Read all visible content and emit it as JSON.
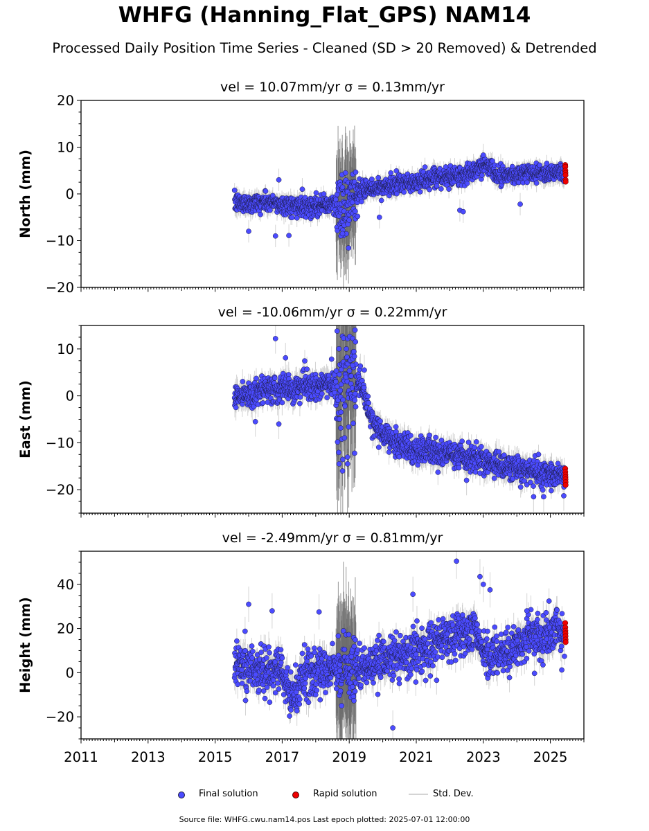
{
  "header": {
    "title": "WHFG (Hanning_Flat_GPS) NAM14",
    "subtitle": "Processed Daily Position Time Series - Cleaned (SD > 20 Removed) & Detrended"
  },
  "legend": {
    "final": "Final solution",
    "rapid": "Rapid solution",
    "stddev": "Std. Dev."
  },
  "footer": {
    "source": "Source file: WHFG.cwu.nam14.pos  Last epoch plotted: 2025-07-01 12:00:00"
  },
  "colors": {
    "final": "#4b4bff",
    "rapid": "#ee0000",
    "stddev": "#bdbdbd",
    "marker_edge": "#1a1a40"
  },
  "chart_data": [
    {
      "type": "scatter",
      "title": "vel = 10.07mm/yr   σ = 0.13mm/yr",
      "ylabel": "North (mm)",
      "xlim": [
        2011.0,
        2026.0
      ],
      "ylim": [
        -20,
        20
      ],
      "yticks": [
        -20,
        -10,
        0,
        10,
        20
      ],
      "xticks": [
        2011,
        2013,
        2015,
        2017,
        2019,
        2021,
        2023,
        2025
      ],
      "show_xticklabels": false,
      "data_start": 2015.58,
      "data_end": 2025.42,
      "rapid_start": 2025.42,
      "rapid_end": 2025.5,
      "trend": [
        [
          2015.58,
          -2.0
        ],
        [
          2016.5,
          -1.8
        ],
        [
          2017.3,
          -2.6
        ],
        [
          2018.5,
          -2.3
        ],
        [
          2018.9,
          -2.0
        ],
        [
          2019.3,
          0.5
        ],
        [
          2020.0,
          1.5
        ],
        [
          2021.0,
          2.5
        ],
        [
          2022.0,
          3.8
        ],
        [
          2022.7,
          4.5
        ],
        [
          2023.1,
          6.5
        ],
        [
          2023.5,
          4.0
        ],
        [
          2024.5,
          4.5
        ],
        [
          2025.42,
          4.8
        ]
      ],
      "scatter_sd": 1.0,
      "sd_base": 1.5,
      "noisy_window": [
        2018.6,
        2019.2
      ],
      "noisy_sd": 3.5,
      "outliers": [
        [
          2016.0,
          -8.0
        ],
        [
          2016.8,
          -9.0
        ],
        [
          2017.2,
          -8.9
        ],
        [
          2016.9,
          3.0
        ],
        [
          2017.6,
          1.0
        ],
        [
          2018.75,
          -9.0
        ],
        [
          2018.8,
          -8.5
        ],
        [
          2019.25,
          -4.8
        ],
        [
          2019.9,
          -5.0
        ],
        [
          2022.3,
          -3.5
        ],
        [
          2022.4,
          -3.8
        ],
        [
          2024.1,
          -2.2
        ],
        [
          2023.0,
          8.3
        ]
      ],
      "rapid_values": [
        6.2,
        5.8,
        5.0,
        4.5,
        4.0,
        3.0,
        2.6
      ]
    },
    {
      "type": "scatter",
      "title": "vel = -10.06mm/yr   σ = 0.22mm/yr",
      "ylabel": "East (mm)",
      "xlim": [
        2011.0,
        2026.0
      ],
      "ylim": [
        -25,
        15
      ],
      "yticks": [
        -20,
        -10,
        0,
        10
      ],
      "xticks": [
        2011,
        2013,
        2015,
        2017,
        2019,
        2021,
        2023,
        2025
      ],
      "show_xticklabels": false,
      "data_start": 2015.58,
      "data_end": 2025.42,
      "rapid_start": 2025.42,
      "rapid_end": 2025.5,
      "trend": [
        [
          2015.58,
          0.0
        ],
        [
          2017.0,
          1.5
        ],
        [
          2018.5,
          2.5
        ],
        [
          2019.3,
          3.0
        ],
        [
          2019.45,
          0.0
        ],
        [
          2019.7,
          -6.0
        ],
        [
          2020.2,
          -9.5
        ],
        [
          2021.0,
          -11.5
        ],
        [
          2022.0,
          -12.5
        ],
        [
          2023.0,
          -14.0
        ],
        [
          2024.0,
          -15.5
        ],
        [
          2025.42,
          -17.0
        ]
      ],
      "scatter_sd": 1.4,
      "sd_base": 2.0,
      "noisy_window": [
        2018.6,
        2019.2
      ],
      "noisy_sd": 7.0,
      "outliers": [
        [
          2016.8,
          12.2
        ],
        [
          2017.1,
          8.1
        ],
        [
          2016.9,
          -6.0
        ],
        [
          2016.2,
          -5.5
        ],
        [
          2018.7,
          -14.5
        ],
        [
          2018.8,
          -16.0
        ],
        [
          2018.95,
          -14.5
        ],
        [
          2019.1,
          6.5
        ],
        [
          2019.45,
          5.5
        ],
        [
          2024.5,
          -21.5
        ],
        [
          2024.8,
          -21.5
        ],
        [
          2025.4,
          -21.3
        ],
        [
          2022.5,
          -18.0
        ]
      ],
      "rapid_values": [
        -15.5,
        -16.2,
        -16.8,
        -17.3,
        -17.8,
        -18.4,
        -19.0
      ]
    },
    {
      "type": "scatter",
      "title": "vel = -2.49mm/yr   σ = 0.81mm/yr",
      "ylabel": "Height (mm)",
      "xlim": [
        2011.0,
        2026.0
      ],
      "ylim": [
        -30,
        55
      ],
      "yticks": [
        -20,
        0,
        20,
        40
      ],
      "xticks": [
        2011,
        2013,
        2015,
        2017,
        2019,
        2021,
        2023,
        2025
      ],
      "show_xticklabels": true,
      "data_start": 2015.58,
      "data_end": 2025.42,
      "rapid_start": 2025.42,
      "rapid_end": 2025.5,
      "trend": [
        [
          2015.58,
          4.0
        ],
        [
          2016.0,
          2.0
        ],
        [
          2017.0,
          0.0
        ],
        [
          2017.3,
          -12.0
        ],
        [
          2017.6,
          -2.0
        ],
        [
          2018.5,
          2.0
        ],
        [
          2019.0,
          3.0
        ],
        [
          2019.6,
          2.0
        ],
        [
          2020.0,
          6.0
        ],
        [
          2021.0,
          10.0
        ],
        [
          2022.0,
          16.0
        ],
        [
          2022.8,
          18.0
        ],
        [
          2023.0,
          10.0
        ],
        [
          2023.5,
          8.0
        ],
        [
          2024.0,
          12.0
        ],
        [
          2024.6,
          17.0
        ],
        [
          2025.42,
          19.0
        ]
      ],
      "scatter_sd": 5.0,
      "sd_base": 5.0,
      "noisy_window": [
        2018.6,
        2019.2
      ],
      "noisy_sd": 7.0,
      "outliers": [
        [
          2016.0,
          31.0
        ],
        [
          2016.7,
          28.0
        ],
        [
          2018.1,
          27.5
        ],
        [
          2020.3,
          -25.0
        ],
        [
          2022.2,
          50.5
        ],
        [
          2022.9,
          43.5
        ],
        [
          2023.2,
          37.5
        ],
        [
          2020.9,
          35.5
        ],
        [
          2023.0,
          40.0
        ],
        [
          2024.3,
          28.0
        ]
      ],
      "rapid_values": [
        22.5,
        20.5,
        19.0,
        17.8,
        16.5,
        15.0,
        13.8
      ]
    }
  ]
}
